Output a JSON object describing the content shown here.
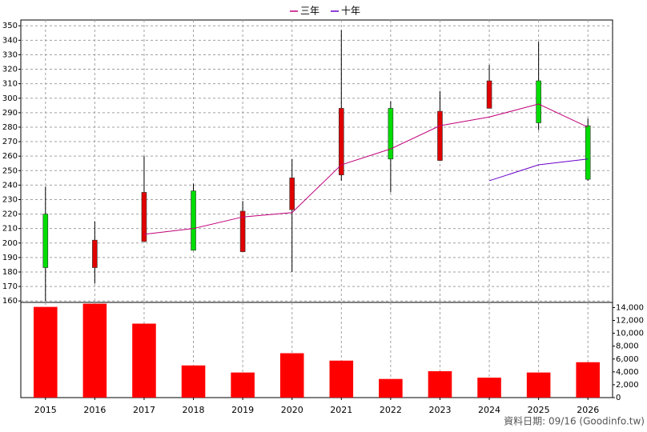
{
  "chart_data": {
    "type": "candlestick",
    "categories": [
      "2015",
      "2016",
      "2017",
      "2018",
      "2019",
      "2020",
      "2021",
      "2022",
      "2023",
      "2024",
      "2025",
      "2026"
    ],
    "open": [
      220,
      183,
      201,
      236,
      194,
      223,
      247,
      293,
      257,
      293,
      312,
      281
    ],
    "high": [
      239,
      215,
      260,
      241,
      229,
      258,
      347,
      298,
      305,
      323,
      339,
      286
    ],
    "low": [
      160,
      172,
      201,
      195,
      194,
      180,
      243,
      235,
      257,
      293,
      278,
      243
    ],
    "close": [
      183,
      202,
      235,
      195,
      222,
      245,
      293,
      258,
      291,
      312,
      283,
      244
    ],
    "up_color": "#e00000",
    "down_color": "#00dd00",
    "series": [
      {
        "name": "三年",
        "color": "#c0007a",
        "values": [
          null,
          null,
          206,
          210,
          218,
          221,
          254,
          265,
          281,
          287,
          296,
          280
        ]
      },
      {
        "name": "十年",
        "color": "#6a00c8",
        "values": [
          null,
          null,
          null,
          null,
          null,
          null,
          null,
          null,
          null,
          243,
          254,
          258
        ]
      }
    ],
    "ylim": [
      159,
      354
    ],
    "yticks": [
      160,
      170,
      180,
      190,
      200,
      210,
      220,
      230,
      240,
      250,
      260,
      270,
      280,
      290,
      300,
      310,
      320,
      330,
      340,
      350
    ],
    "grid": true,
    "volume": {
      "color": "#ff0000",
      "values": [
        14100,
        14600,
        11500,
        5000,
        3900,
        6900,
        5750,
        2900,
        4100,
        3100,
        3900,
        5500
      ],
      "ylim": [
        0,
        14800
      ],
      "yticks": [
        0,
        {
          "value": 2000,
          "label": "2,000"
        },
        {
          "value": 4000,
          "label": "4,000"
        },
        {
          "value": 6000,
          "label": "6,000"
        },
        {
          "value": 8000,
          "label": "8,000"
        },
        {
          "value": 10000,
          "label": "10,000"
        },
        {
          "value": 12000,
          "label": "12,000"
        },
        {
          "value": 14000,
          "label": "14,000"
        }
      ]
    },
    "footer": "資料日期: 09/16 (Goodinfo.tw)"
  }
}
